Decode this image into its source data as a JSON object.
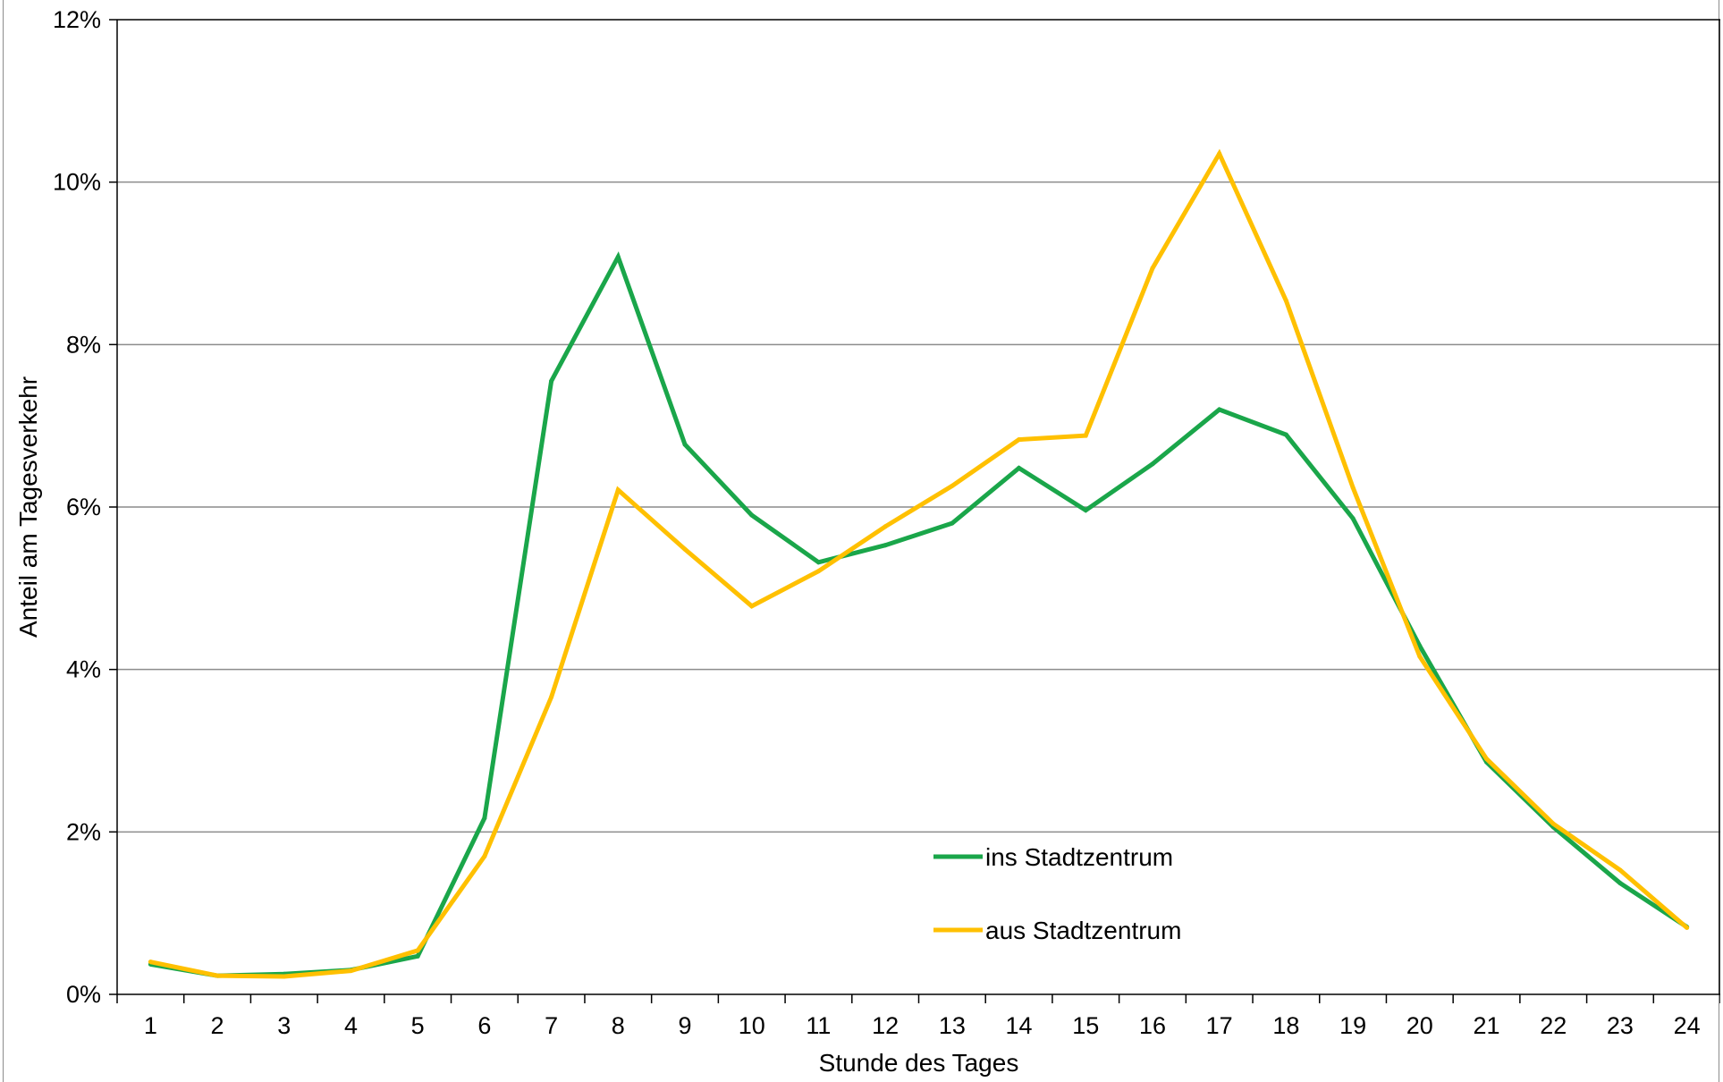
{
  "chart_data": {
    "type": "line",
    "title": "",
    "xlabel": "Stunde des Tages",
    "ylabel": "Anteil am Tagesverkehr",
    "categories": [
      "1",
      "2",
      "3",
      "4",
      "5",
      "6",
      "7",
      "8",
      "9",
      "10",
      "11",
      "12",
      "13",
      "14",
      "15",
      "16",
      "17",
      "18",
      "19",
      "20",
      "21",
      "22",
      "23",
      "24"
    ],
    "y_ticks": [
      "0%",
      "2%",
      "4%",
      "6%",
      "8%",
      "10%",
      "12%"
    ],
    "ylim": [
      0,
      12
    ],
    "y_unit": "%",
    "grid": "horizontal",
    "legend_position": "inside-bottom-center",
    "series": [
      {
        "name": "ins Stadtzentrum",
        "color": "#1aa64a",
        "values": [
          0.37,
          0.23,
          0.25,
          0.3,
          0.47,
          2.17,
          7.55,
          9.08,
          6.77,
          5.9,
          5.32,
          5.53,
          5.8,
          6.48,
          5.96,
          6.53,
          7.2,
          6.89,
          5.86,
          4.29,
          2.86,
          2.06,
          1.37,
          0.83
        ]
      },
      {
        "name": "aus Stadtzentrum",
        "color": "#ffc000",
        "values": [
          0.4,
          0.23,
          0.22,
          0.29,
          0.54,
          1.7,
          3.66,
          6.21,
          5.48,
          4.78,
          5.21,
          5.76,
          6.26,
          6.83,
          6.88,
          8.94,
          10.35,
          8.54,
          6.24,
          4.16,
          2.9,
          2.1,
          1.53,
          0.82
        ]
      }
    ]
  }
}
